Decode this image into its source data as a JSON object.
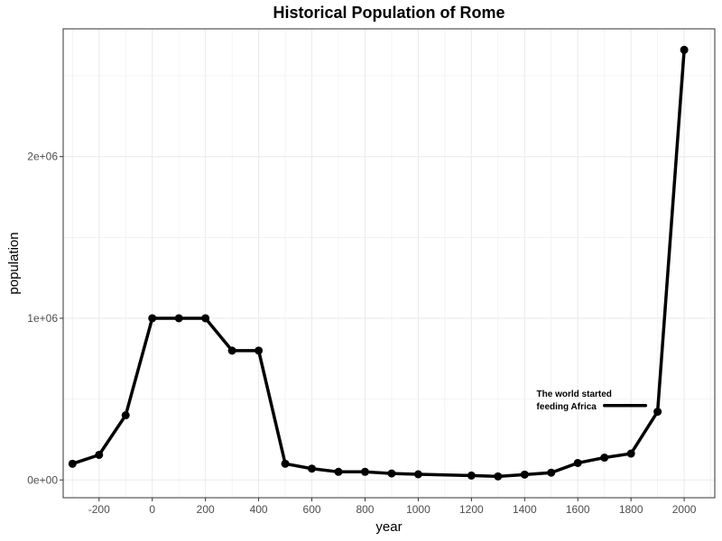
{
  "chart_data": {
    "type": "line",
    "title": "Historical Population of Rome",
    "xlabel": "year",
    "ylabel": "population",
    "xlim": [
      -335,
      2115
    ],
    "ylim": [
      -110000,
      2790000
    ],
    "x_ticks": [
      -200,
      0,
      200,
      400,
      600,
      800,
      1000,
      1200,
      1400,
      1600,
      1800,
      2000
    ],
    "x_tick_labels": [
      "-200",
      "0",
      "200",
      "400",
      "600",
      "800",
      "1000",
      "1200",
      "1400",
      "1600",
      "1800",
      "2000"
    ],
    "y_ticks": [
      0,
      1000000,
      2000000
    ],
    "y_tick_labels": [
      "0e+00",
      "1e+06",
      "2e+06"
    ],
    "grid": true,
    "line_color": "#000000",
    "series": [
      {
        "x": [
          -300,
          -200,
          -100,
          0,
          100,
          200,
          300,
          400,
          500,
          600,
          700,
          800,
          900,
          1000,
          1200,
          1300,
          1400,
          1500,
          1600,
          1700,
          1800,
          1900,
          2000
        ],
        "y": [
          100000,
          155000,
          400000,
          1000000,
          1000000,
          1000000,
          800000,
          800000,
          100000,
          70000,
          50000,
          50000,
          40000,
          35000,
          27000,
          22000,
          33000,
          45000,
          105000,
          138000,
          163000,
          422000,
          2660000
        ]
      }
    ],
    "annotations": [
      {
        "lines": [
          "The world started",
          "feeding Africa"
        ],
        "arrow_from_x": 1855,
        "arrow_to_x": 1700,
        "arrow_y": 460000
      }
    ]
  }
}
